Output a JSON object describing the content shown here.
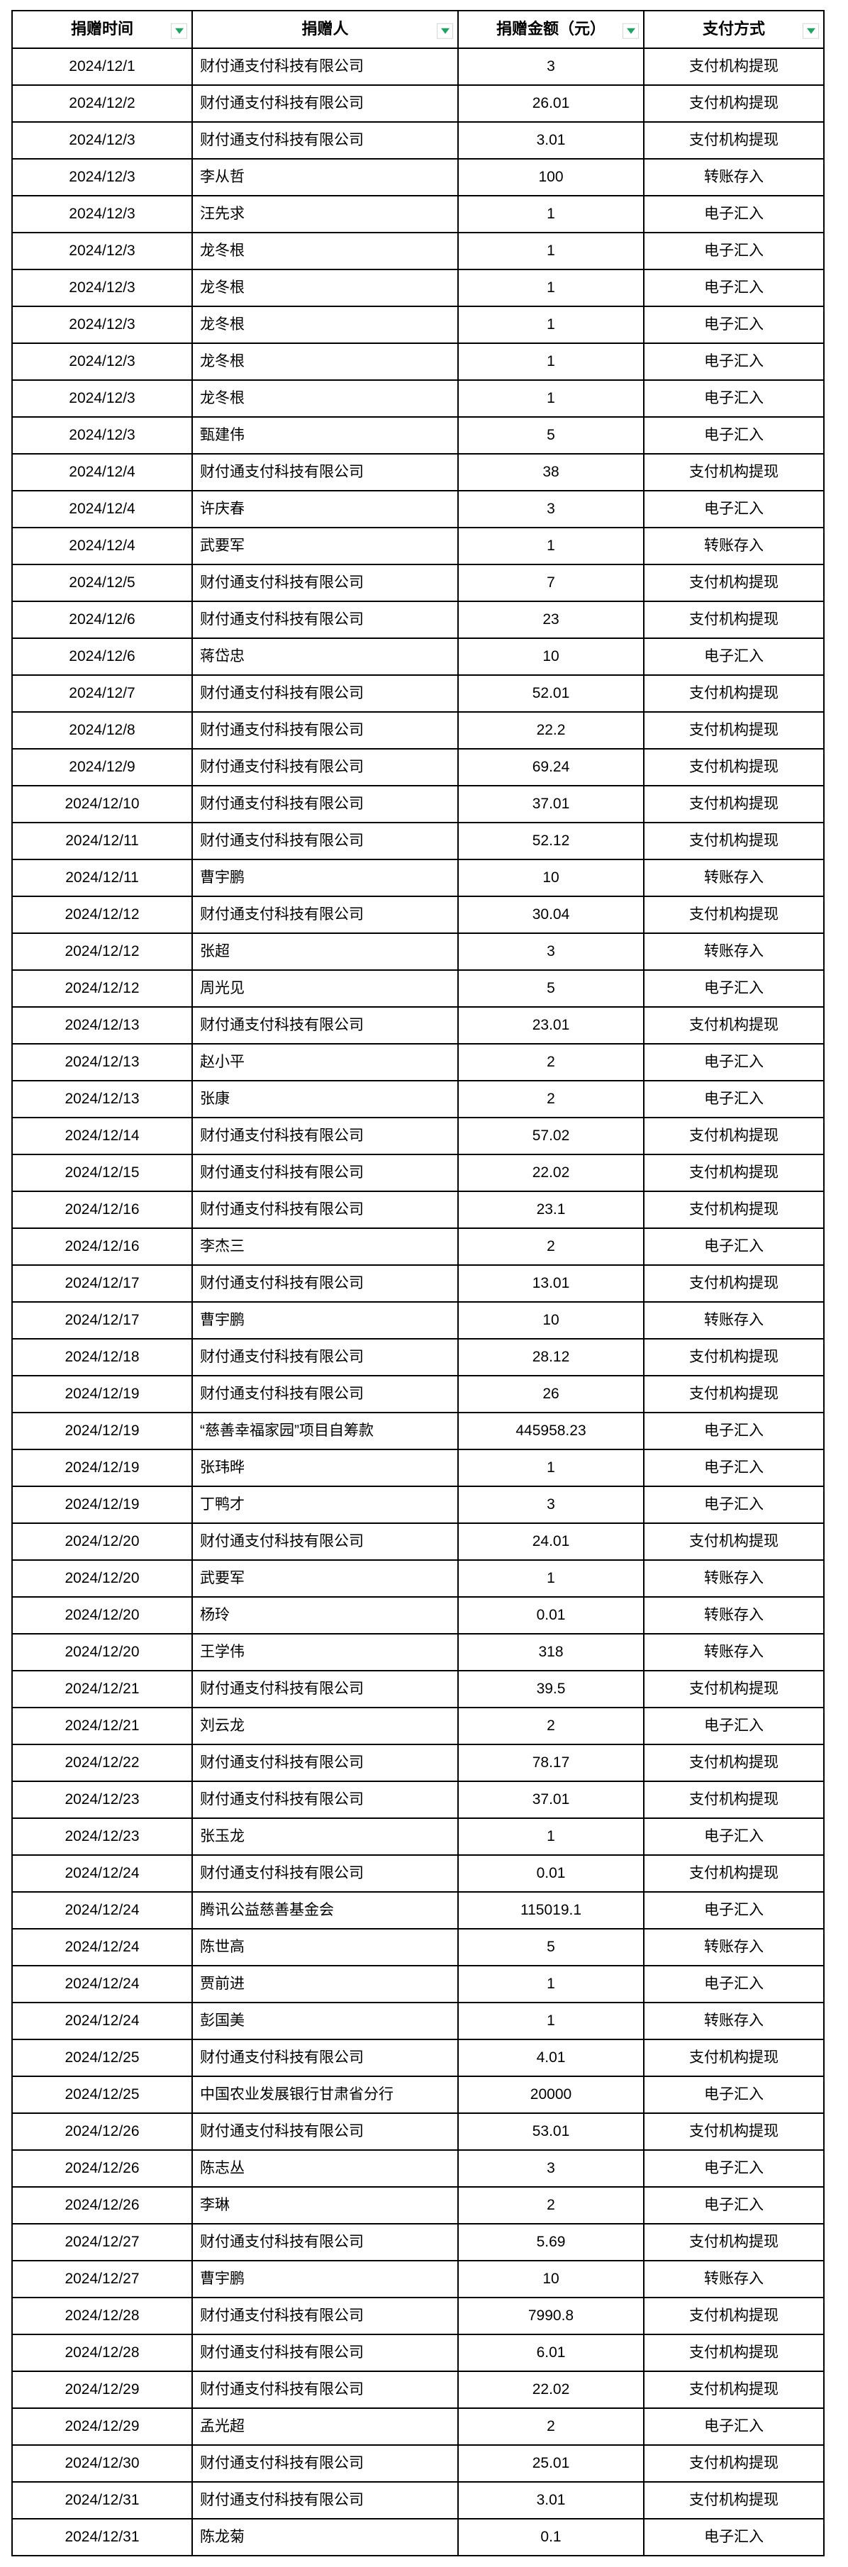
{
  "colors": {
    "filter_arrow": "#21A366",
    "grid_border": "#000000",
    "cell_background": "#FFFFFF"
  },
  "table": {
    "columns": [
      {
        "id": "donation-time",
        "label": "捐赠时间",
        "filter_icon": "chevron-down-icon"
      },
      {
        "id": "donor",
        "label": "捐赠人",
        "filter_icon": "chevron-down-icon"
      },
      {
        "id": "amount",
        "label": "捐赠金额（元）",
        "filter_icon": "chevron-down-icon"
      },
      {
        "id": "payment-method",
        "label": "支付方式",
        "filter_icon": "chevron-down-icon"
      }
    ],
    "rows": [
      [
        "2024/12/1",
        "财付通支付科技有限公司",
        "3",
        "支付机构提现"
      ],
      [
        "2024/12/2",
        "财付通支付科技有限公司",
        "26.01",
        "支付机构提现"
      ],
      [
        "2024/12/3",
        "财付通支付科技有限公司",
        "3.01",
        "支付机构提现"
      ],
      [
        "2024/12/3",
        "李从哲",
        "100",
        "转账存入"
      ],
      [
        "2024/12/3",
        "汪先求",
        "1",
        "电子汇入"
      ],
      [
        "2024/12/3",
        "龙冬根",
        "1",
        "电子汇入"
      ],
      [
        "2024/12/3",
        "龙冬根",
        "1",
        "电子汇入"
      ],
      [
        "2024/12/3",
        "龙冬根",
        "1",
        "电子汇入"
      ],
      [
        "2024/12/3",
        "龙冬根",
        "1",
        "电子汇入"
      ],
      [
        "2024/12/3",
        "龙冬根",
        "1",
        "电子汇入"
      ],
      [
        "2024/12/3",
        "甄建伟",
        "5",
        "电子汇入"
      ],
      [
        "2024/12/4",
        "财付通支付科技有限公司",
        "38",
        "支付机构提现"
      ],
      [
        "2024/12/4",
        "许庆春",
        "3",
        "电子汇入"
      ],
      [
        "2024/12/4",
        "武要军",
        "1",
        "转账存入"
      ],
      [
        "2024/12/5",
        "财付通支付科技有限公司",
        "7",
        "支付机构提现"
      ],
      [
        "2024/12/6",
        "财付通支付科技有限公司",
        "23",
        "支付机构提现"
      ],
      [
        "2024/12/6",
        "蒋岱忠",
        "10",
        "电子汇入"
      ],
      [
        "2024/12/7",
        "财付通支付科技有限公司",
        "52.01",
        "支付机构提现"
      ],
      [
        "2024/12/8",
        "财付通支付科技有限公司",
        "22.2",
        "支付机构提现"
      ],
      [
        "2024/12/9",
        "财付通支付科技有限公司",
        "69.24",
        "支付机构提现"
      ],
      [
        "2024/12/10",
        "财付通支付科技有限公司",
        "37.01",
        "支付机构提现"
      ],
      [
        "2024/12/11",
        "财付通支付科技有限公司",
        "52.12",
        "支付机构提现"
      ],
      [
        "2024/12/11",
        "曹宇鹏",
        "10",
        "转账存入"
      ],
      [
        "2024/12/12",
        "财付通支付科技有限公司",
        "30.04",
        "支付机构提现"
      ],
      [
        "2024/12/12",
        "张超",
        "3",
        "转账存入"
      ],
      [
        "2024/12/12",
        "周光见",
        "5",
        "电子汇入"
      ],
      [
        "2024/12/13",
        "财付通支付科技有限公司",
        "23.01",
        "支付机构提现"
      ],
      [
        "2024/12/13",
        "赵小平",
        "2",
        "电子汇入"
      ],
      [
        "2024/12/13",
        "张康",
        "2",
        "电子汇入"
      ],
      [
        "2024/12/14",
        "财付通支付科技有限公司",
        "57.02",
        "支付机构提现"
      ],
      [
        "2024/12/15",
        "财付通支付科技有限公司",
        "22.02",
        "支付机构提现"
      ],
      [
        "2024/12/16",
        "财付通支付科技有限公司",
        "23.1",
        "支付机构提现"
      ],
      [
        "2024/12/16",
        "李杰三",
        "2",
        "电子汇入"
      ],
      [
        "2024/12/17",
        "财付通支付科技有限公司",
        "13.01",
        "支付机构提现"
      ],
      [
        "2024/12/17",
        "曹宇鹏",
        "10",
        "转账存入"
      ],
      [
        "2024/12/18",
        "财付通支付科技有限公司",
        "28.12",
        "支付机构提现"
      ],
      [
        "2024/12/19",
        "财付通支付科技有限公司",
        "26",
        "支付机构提现"
      ],
      [
        "2024/12/19",
        "“慈善幸福家园”项目自筹款",
        "445958.23",
        "电子汇入"
      ],
      [
        "2024/12/19",
        "张玮晔",
        "1",
        "电子汇入"
      ],
      [
        "2024/12/19",
        "丁鸭才",
        "3",
        "电子汇入"
      ],
      [
        "2024/12/20",
        "财付通支付科技有限公司",
        "24.01",
        "支付机构提现"
      ],
      [
        "2024/12/20",
        "武要军",
        "1",
        "转账存入"
      ],
      [
        "2024/12/20",
        "杨玲",
        "0.01",
        "转账存入"
      ],
      [
        "2024/12/20",
        "王学伟",
        "318",
        "转账存入"
      ],
      [
        "2024/12/21",
        "财付通支付科技有限公司",
        "39.5",
        "支付机构提现"
      ],
      [
        "2024/12/21",
        "刘云龙",
        "2",
        "电子汇入"
      ],
      [
        "2024/12/22",
        "财付通支付科技有限公司",
        "78.17",
        "支付机构提现"
      ],
      [
        "2024/12/23",
        "财付通支付科技有限公司",
        "37.01",
        "支付机构提现"
      ],
      [
        "2024/12/23",
        "张玉龙",
        "1",
        "电子汇入"
      ],
      [
        "2024/12/24",
        "财付通支付科技有限公司",
        "0.01",
        "支付机构提现"
      ],
      [
        "2024/12/24",
        "腾讯公益慈善基金会",
        "115019.1",
        "电子汇入"
      ],
      [
        "2024/12/24",
        "陈世高",
        "5",
        "转账存入"
      ],
      [
        "2024/12/24",
        "贾前进",
        "1",
        "电子汇入"
      ],
      [
        "2024/12/24",
        "彭国美",
        "1",
        "转账存入"
      ],
      [
        "2024/12/25",
        "财付通支付科技有限公司",
        "4.01",
        "支付机构提现"
      ],
      [
        "2024/12/25",
        "中国农业发展银行甘肃省分行",
        "20000",
        "电子汇入"
      ],
      [
        "2024/12/26",
        "财付通支付科技有限公司",
        "53.01",
        "支付机构提现"
      ],
      [
        "2024/12/26",
        "陈志丛",
        "3",
        "电子汇入"
      ],
      [
        "2024/12/26",
        "李琳",
        "2",
        "电子汇入"
      ],
      [
        "2024/12/27",
        "财付通支付科技有限公司",
        "5.69",
        "支付机构提现"
      ],
      [
        "2024/12/27",
        "曹宇鹏",
        "10",
        "转账存入"
      ],
      [
        "2024/12/28",
        "财付通支付科技有限公司",
        "7990.8",
        "支付机构提现"
      ],
      [
        "2024/12/28",
        "财付通支付科技有限公司",
        "6.01",
        "支付机构提现"
      ],
      [
        "2024/12/29",
        "财付通支付科技有限公司",
        "22.02",
        "支付机构提现"
      ],
      [
        "2024/12/29",
        "孟光超",
        "2",
        "电子汇入"
      ],
      [
        "2024/12/30",
        "财付通支付科技有限公司",
        "25.01",
        "支付机构提现"
      ],
      [
        "2024/12/31",
        "财付通支付科技有限公司",
        "3.01",
        "支付机构提现"
      ],
      [
        "2024/12/31",
        "陈龙菊",
        "0.1",
        "电子汇入"
      ]
    ]
  }
}
